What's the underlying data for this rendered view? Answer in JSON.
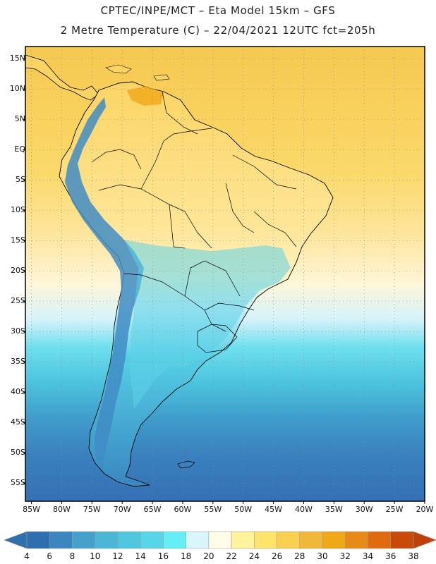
{
  "header": {
    "line1": "CPTEC/INPE/MCT –  Eta Model 15km – GFS",
    "line2": "2 Metre Temperature (C) – 22/04/2021 12UTC fct=205h"
  },
  "map": {
    "lat_labels": [
      "15N",
      "10N",
      "5N",
      "EQ",
      "5S",
      "10S",
      "15S",
      "20S",
      "25S",
      "30S",
      "35S",
      "40S",
      "45S",
      "50S",
      "55S"
    ],
    "lat_values": [
      15,
      10,
      5,
      0,
      -5,
      -10,
      -15,
      -20,
      -25,
      -30,
      -35,
      -40,
      -45,
      -50,
      -55
    ],
    "lon_labels": [
      "85W",
      "80W",
      "75W",
      "70W",
      "65W",
      "60W",
      "55W",
      "50W",
      "45W",
      "40W",
      "35W",
      "30W",
      "25W",
      "20W"
    ],
    "lon_values": [
      -85,
      -80,
      -75,
      -70,
      -65,
      -60,
      -55,
      -50,
      -45,
      -40,
      -35,
      -30,
      -25,
      -20
    ],
    "extent": {
      "lon_min": -86,
      "lon_max": -20,
      "lat_min": -58,
      "lat_max": 17
    }
  },
  "colorbar": {
    "labels": [
      "4",
      "6",
      "8",
      "10",
      "12",
      "14",
      "16",
      "18",
      "20",
      "22",
      "24",
      "26",
      "28",
      "30",
      "32",
      "34",
      "36",
      "38"
    ],
    "colors": [
      "#2e6fb0",
      "#3c86c0",
      "#46a0cc",
      "#4cb6d6",
      "#50c6df",
      "#58d6e8",
      "#66eef5",
      "#d8f6fb",
      "#fffbe6",
      "#fff39c",
      "#ffe46c",
      "#f8cf50",
      "#f0b838",
      "#f0a818",
      "#e88a18",
      "#e06a10",
      "#c84a08"
    ]
  },
  "colors": {
    "ocean_north": "#f8d058",
    "ocean_south": "#3a78b8",
    "land": "#ffe486",
    "andes": "#3a86c0",
    "border": "#000000",
    "grid": "#8a8a8a"
  }
}
